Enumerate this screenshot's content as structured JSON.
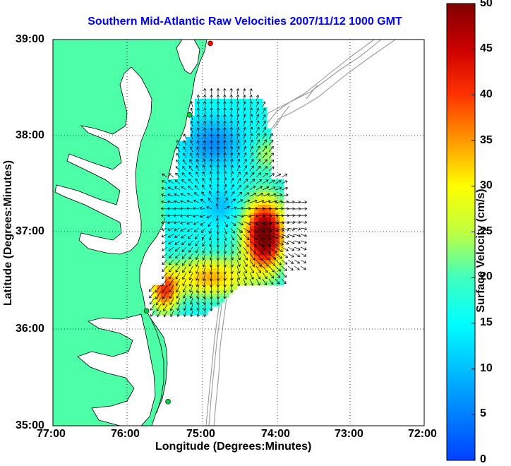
{
  "title": "Southern Mid-Atlantic Raw Velocities 2007/11/12 1000 GMT",
  "x_axis": {
    "label": "Longitude (Degrees:Minutes)",
    "ticks": [
      "77:00",
      "76:00",
      "75:00",
      "74:00",
      "73:00",
      "72:00"
    ]
  },
  "y_axis": {
    "label": "Latitude (Degrees:Minutes)",
    "ticks": [
      "39:00",
      "38:00",
      "37:00",
      "36:00",
      "35:00"
    ]
  },
  "colorbar": {
    "label": "Surface Velocity (cm/s)",
    "ticks": [
      "50",
      "45",
      "40",
      "35",
      "30",
      "25",
      "20",
      "15",
      "10",
      "5",
      "0"
    ],
    "min": 0,
    "max": 50
  },
  "colors": {
    "land": "#4dffa6",
    "title": "#0000ff",
    "station_red": "#ff0000",
    "station_green": "#00cc44",
    "bathymetry": "#999999"
  },
  "stations": [
    {
      "lon": -74.88,
      "lat": 38.96,
      "color": "red"
    },
    {
      "lon": -75.16,
      "lat": 38.22,
      "color": "green"
    },
    {
      "lon": -75.74,
      "lat": 36.19,
      "color": "green"
    },
    {
      "lon": -75.45,
      "lat": 35.25,
      "color": "green"
    }
  ]
}
